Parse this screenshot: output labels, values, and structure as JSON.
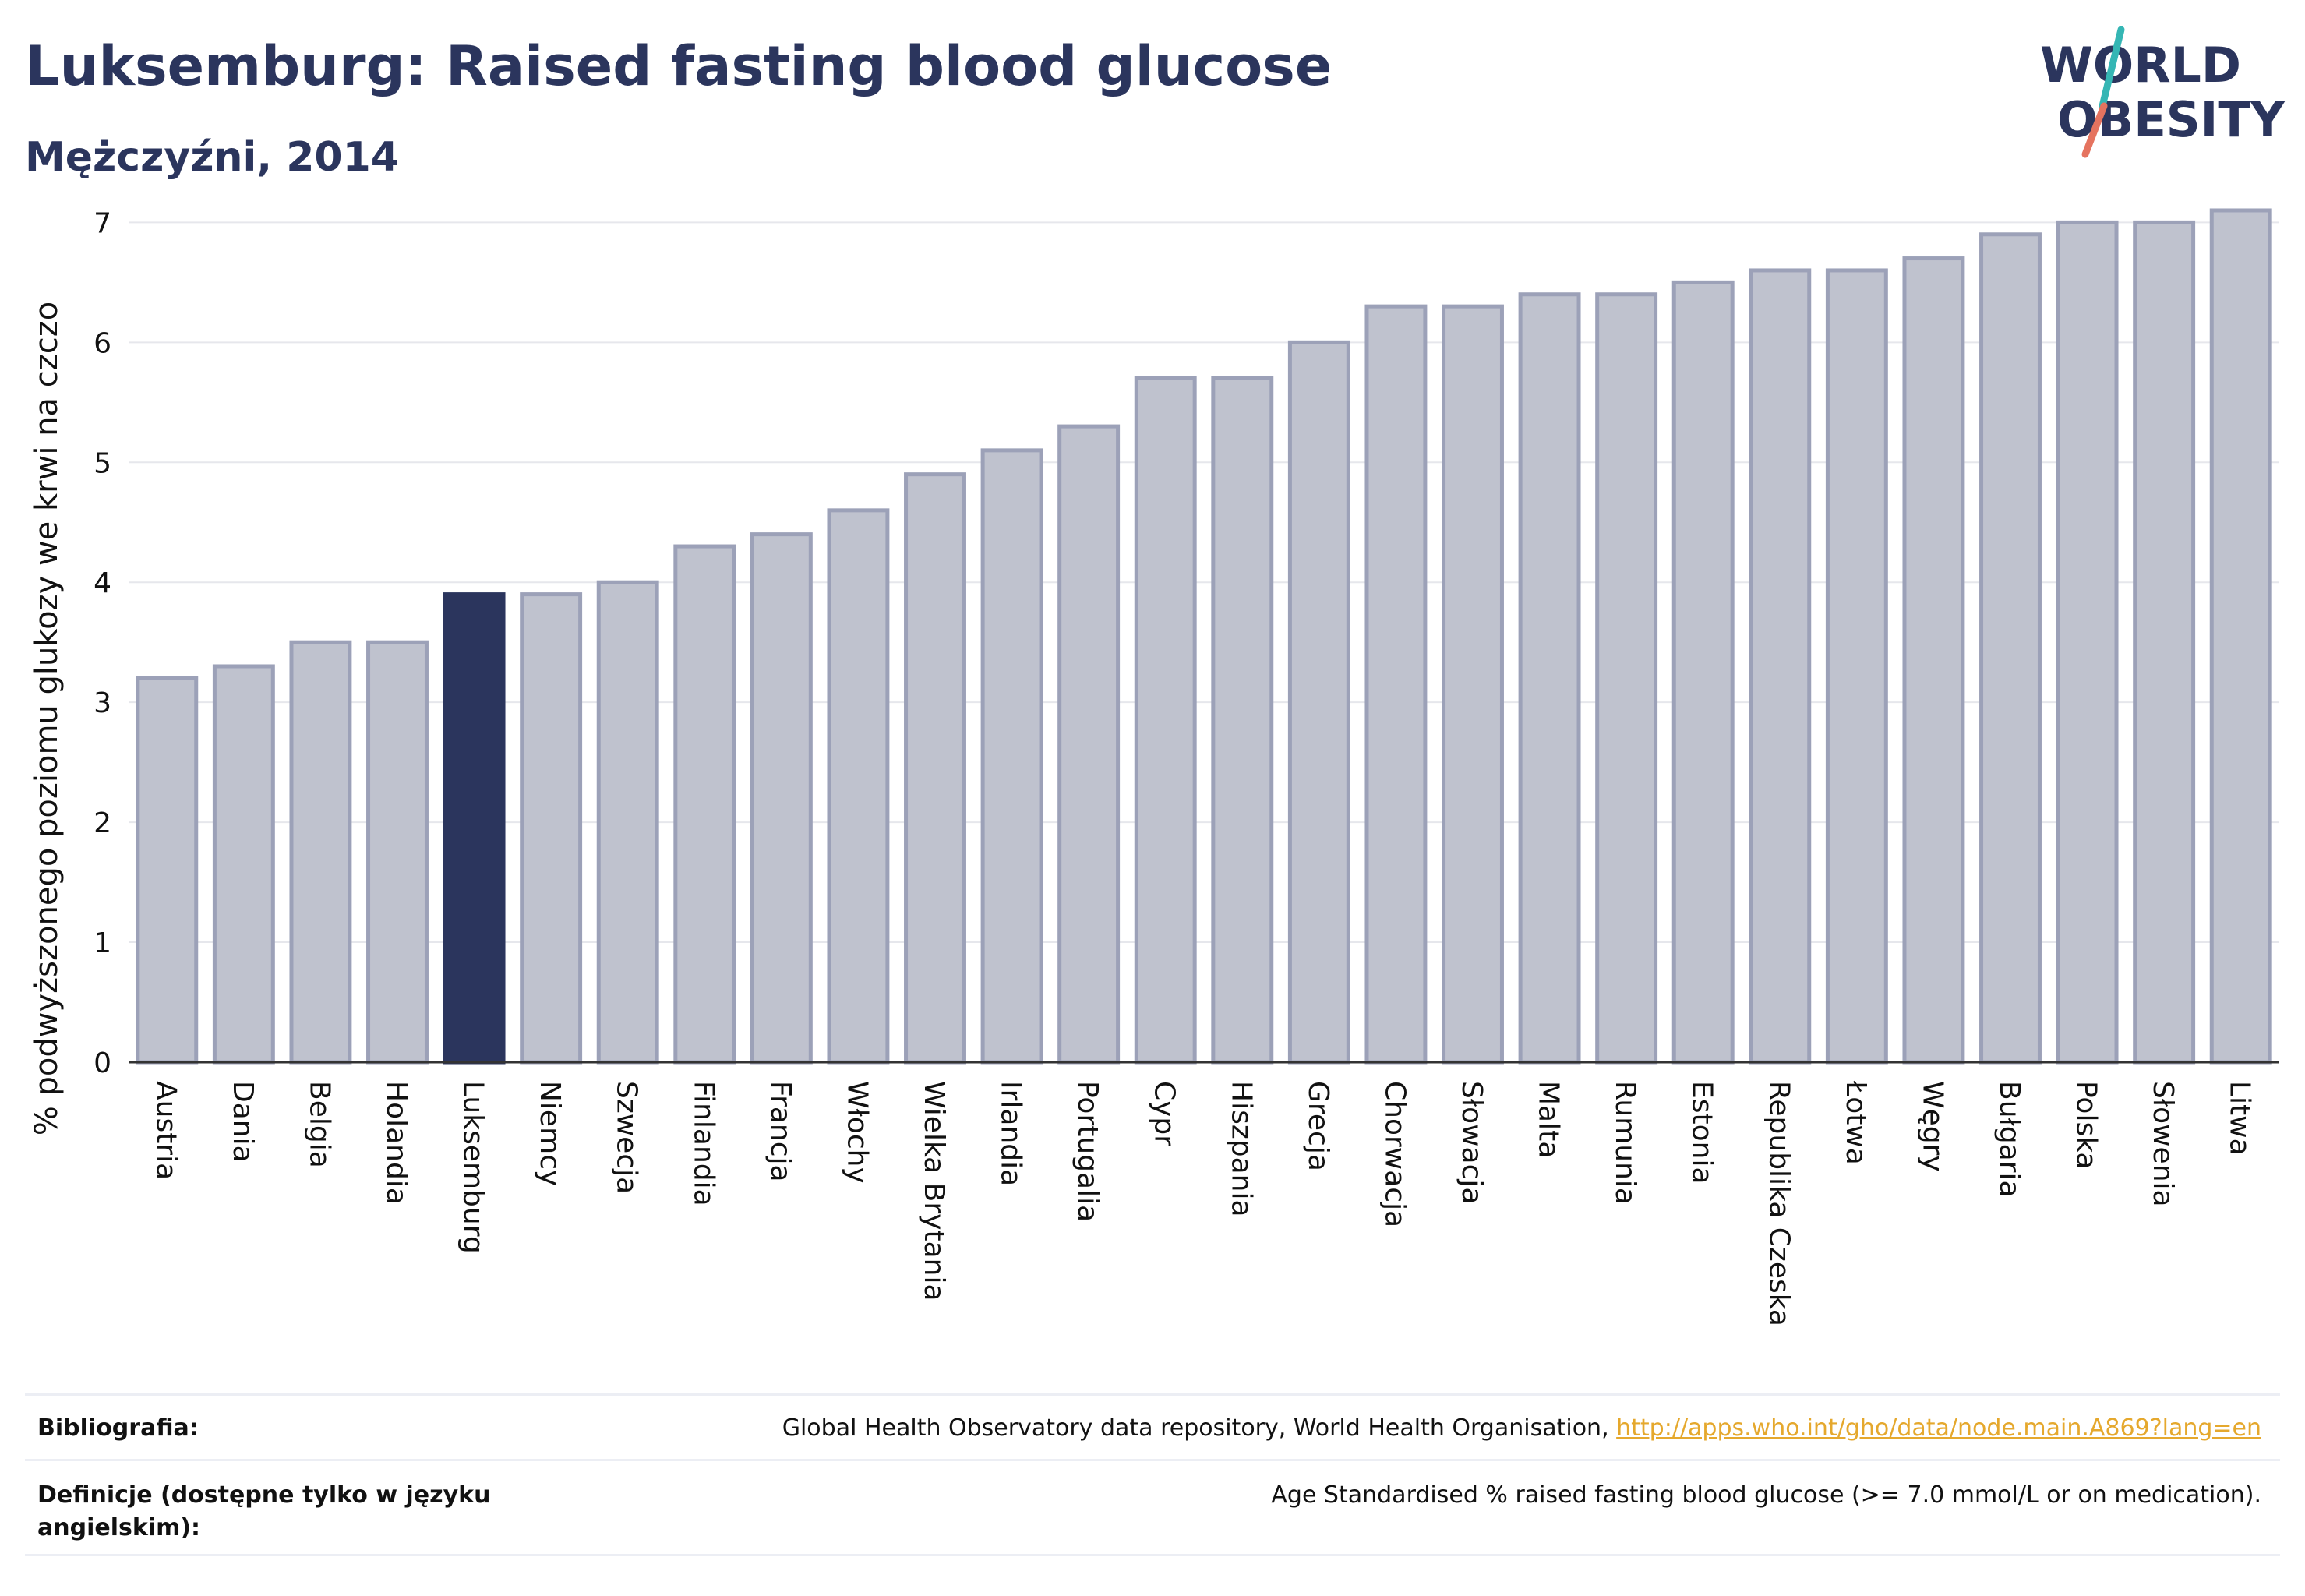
{
  "header": {
    "title": "Luksemburg: Raised fasting blood glucose",
    "subtitle": "Mężczyźni, 2014",
    "logo_line1": "WORLD",
    "logo_line2": "OBESITY"
  },
  "chart_data": {
    "type": "bar",
    "title": "Luksemburg: Raised fasting blood glucose",
    "subtitle": "Mężczyźni, 2014",
    "ylabel": "% podwyższonego poziomu glukozy we krwi na czczo",
    "xlabel": "",
    "ylim": [
      0,
      7.5
    ],
    "yticks": [
      0,
      1,
      2,
      3,
      4,
      5,
      6,
      7
    ],
    "grid": true,
    "highlight": "Luksemburg",
    "categories": [
      "Austria",
      "Dania",
      "Belgia",
      "Holandia",
      "Luksemburg",
      "Niemcy",
      "Szwecja",
      "Finlandia",
      "Francja",
      "Włochy",
      "Wielka Brytania",
      "Irlandia",
      "Portugalia",
      "Cypr",
      "Hiszpania",
      "Grecja",
      "Chorwacja",
      "Słowacja",
      "Malta",
      "Rumunia",
      "Estonia",
      "Republika Czeska",
      "Łotwa",
      "Węgry",
      "Bułgaria",
      "Polska",
      "Słowenia",
      "Litwa"
    ],
    "values": [
      3.2,
      3.3,
      3.5,
      3.5,
      3.9,
      3.9,
      4.0,
      4.3,
      4.4,
      4.6,
      4.9,
      5.1,
      5.3,
      5.7,
      5.7,
      6.0,
      6.3,
      6.3,
      6.4,
      6.4,
      6.5,
      6.6,
      6.6,
      6.7,
      6.9,
      7.0,
      7.0,
      7.1
    ]
  },
  "colors": {
    "bar": "#bfc2ce",
    "bar_border": "#9ca1b8",
    "highlight": "#2b355d",
    "grid": "#e6e7ec",
    "logo_slash_teal": "#35b6b4",
    "logo_slash_red": "#e5735f",
    "link": "#e5a82d"
  },
  "footer": {
    "bib_label": "Bibliografia:",
    "bib_text": "Global Health Observatory data repository, World Health Organisation, ",
    "bib_link": "http://apps.who.int/gho/data/node.main.A869?lang=en",
    "def_label": "Definicje (dostępne tylko w języku angielskim):",
    "def_text": "Age Standardised % raised fasting blood glucose (>= 7.0 mmol/L or on medication)."
  }
}
